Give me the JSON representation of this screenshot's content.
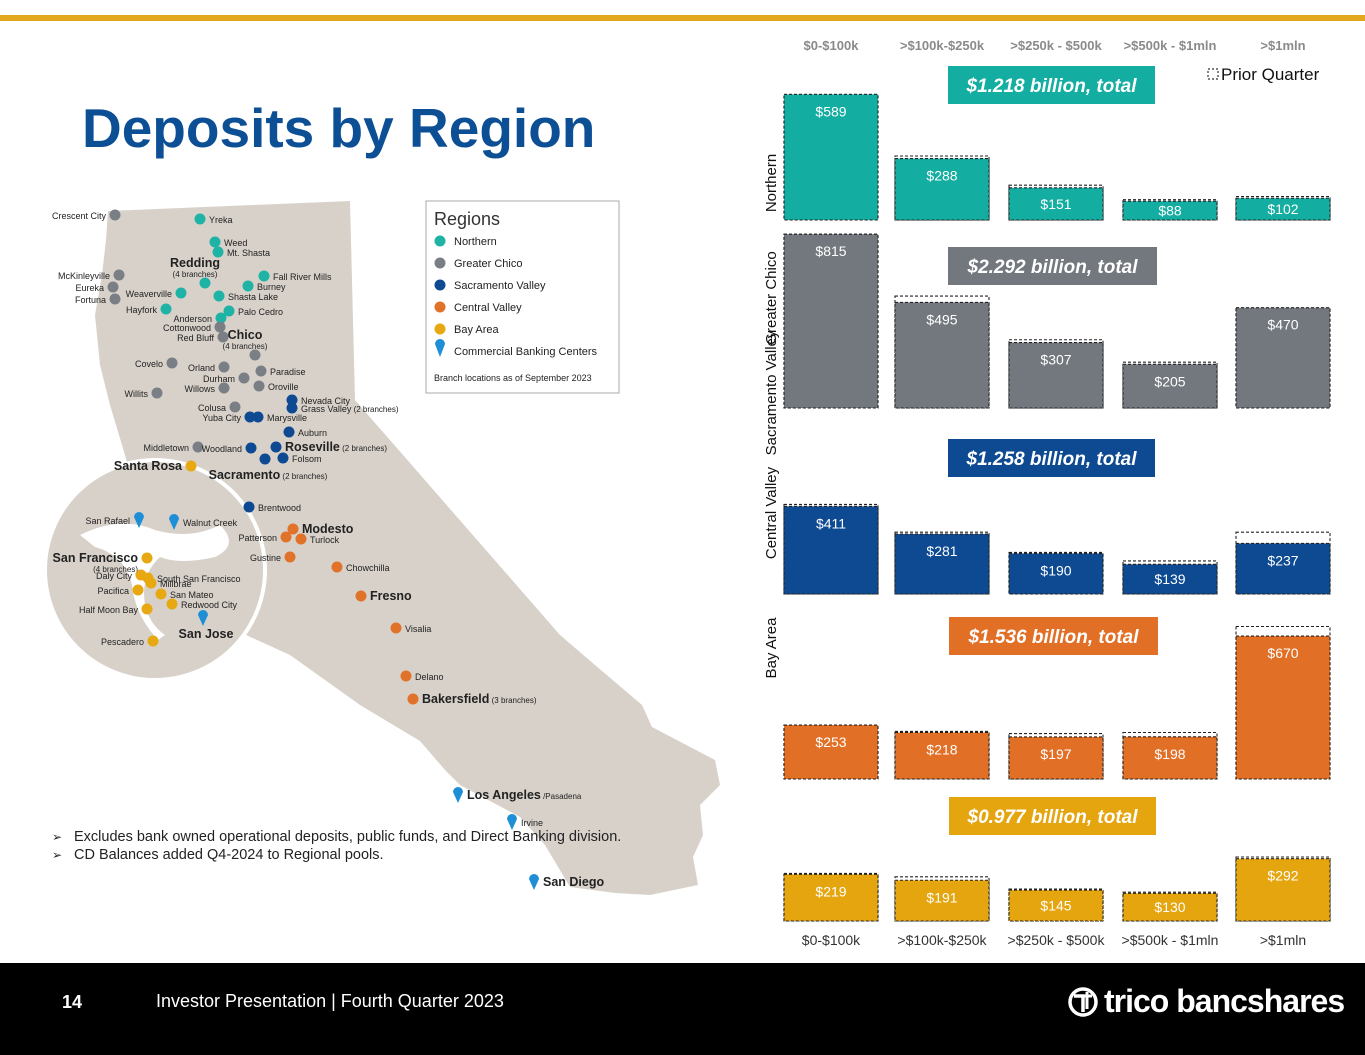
{
  "page": {
    "title": "Deposits by Region"
  },
  "map": {
    "regions_title": "Regions",
    "legend": [
      {
        "label": "Northern",
        "color": "#1fb3a6"
      },
      {
        "label": "Greater Chico",
        "color": "#7a7f86"
      },
      {
        "label": "Sacramento Valley",
        "color": "#0e4a92"
      },
      {
        "label": "Central Valley",
        "color": "#e0722a"
      },
      {
        "label": "Bay Area",
        "color": "#e8a812"
      },
      {
        "label": "Commercial Banking Centers",
        "color": "#1e8fd6"
      }
    ],
    "legend_note": "Branch locations as of September 2023",
    "cities": [
      {
        "name": "Crescent City",
        "region": "Greater Chico"
      },
      {
        "name": "Yreka",
        "region": "Northern"
      },
      {
        "name": "Weed",
        "region": "Northern"
      },
      {
        "name": "Mt. Shasta",
        "region": "Northern"
      },
      {
        "name": "Redding",
        "sub": "(4 branches)",
        "region": "Northern"
      },
      {
        "name": "Fall River Mills",
        "region": "Northern"
      },
      {
        "name": "Burney",
        "region": "Northern"
      },
      {
        "name": "McKinleyville",
        "region": "Greater Chico"
      },
      {
        "name": "Eureka",
        "region": "Greater Chico"
      },
      {
        "name": "Fortuna",
        "region": "Greater Chico"
      },
      {
        "name": "Weaverville",
        "region": "Northern"
      },
      {
        "name": "Shasta Lake",
        "region": "Northern"
      },
      {
        "name": "Hayfork",
        "region": "Northern"
      },
      {
        "name": "Palo Cedro",
        "region": "Northern"
      },
      {
        "name": "Anderson",
        "region": "Northern"
      },
      {
        "name": "Cottonwood",
        "region": "Greater Chico"
      },
      {
        "name": "Red Bluff",
        "region": "Greater Chico"
      },
      {
        "name": "Chico",
        "sub": "(4 branches)",
        "region": "Greater Chico"
      },
      {
        "name": "Covelo",
        "region": "Greater Chico"
      },
      {
        "name": "Orland",
        "region": "Greater Chico"
      },
      {
        "name": "Paradise",
        "region": "Greater Chico"
      },
      {
        "name": "Durham",
        "region": "Greater Chico"
      },
      {
        "name": "Willows",
        "region": "Greater Chico"
      },
      {
        "name": "Oroville",
        "region": "Greater Chico"
      },
      {
        "name": "Willits",
        "region": "Greater Chico"
      },
      {
        "name": "Nevada City",
        "region": "Sacramento Valley"
      },
      {
        "name": "Colusa",
        "region": "Greater Chico"
      },
      {
        "name": "Grass Valley",
        "sub": "(2 branches)",
        "region": "Sacramento Valley"
      },
      {
        "name": "Yuba City",
        "region": "Sacramento Valley"
      },
      {
        "name": "Marysville",
        "region": "Sacramento Valley"
      },
      {
        "name": "Auburn",
        "region": "Sacramento Valley"
      },
      {
        "name": "Middletown",
        "region": "Greater Chico"
      },
      {
        "name": "Woodland",
        "region": "Sacramento Valley"
      },
      {
        "name": "Roseville",
        "sub": "(2 branches)",
        "region": "Sacramento Valley"
      },
      {
        "name": "Folsom",
        "region": "Sacramento Valley"
      },
      {
        "name": "Santa Rosa",
        "region": "Bay Area"
      },
      {
        "name": "Sacramento",
        "sub": "(2 branches)",
        "region": "Sacramento Valley"
      },
      {
        "name": "Brentwood",
        "region": "Sacramento Valley"
      },
      {
        "name": "San Rafael",
        "region": "Commercial Banking Centers"
      },
      {
        "name": "Walnut Creek",
        "region": "Commercial Banking Centers"
      },
      {
        "name": "Patterson",
        "region": "Central Valley"
      },
      {
        "name": "Modesto",
        "region": "Central Valley"
      },
      {
        "name": "Turlock",
        "region": "Central Valley"
      },
      {
        "name": "Gustine",
        "region": "Central Valley"
      },
      {
        "name": "San Francisco",
        "sub": "(4 branches)",
        "region": "Bay Area"
      },
      {
        "name": "Daly City",
        "region": "Bay Area"
      },
      {
        "name": "South San Francisco",
        "region": "Bay Area"
      },
      {
        "name": "Millbrae",
        "region": "Bay Area"
      },
      {
        "name": "Pacifica",
        "region": "Bay Area"
      },
      {
        "name": "San Mateo",
        "region": "Bay Area"
      },
      {
        "name": "Half Moon Bay",
        "region": "Bay Area"
      },
      {
        "name": "Redwood City",
        "region": "Bay Area"
      },
      {
        "name": "San Jose",
        "region": "Commercial Banking Centers"
      },
      {
        "name": "Pescadero",
        "region": "Bay Area"
      },
      {
        "name": "Chowchilla",
        "region": "Central Valley"
      },
      {
        "name": "Fresno",
        "region": "Central Valley"
      },
      {
        "name": "Visalia",
        "region": "Central Valley"
      },
      {
        "name": "Delano",
        "region": "Central Valley"
      },
      {
        "name": "Bakersfield",
        "sub": "(3 branches)",
        "region": "Central Valley"
      },
      {
        "name": "Los Angeles",
        "sub": "/Pasadena",
        "region": "Commercial Banking Centers"
      },
      {
        "name": "Irvine",
        "region": "Commercial Banking Centers"
      },
      {
        "name": "San Diego",
        "region": "Commercial Banking Centers"
      }
    ]
  },
  "notes": [
    "Excludes bank owned operational deposits, public funds, and Direct Banking division.",
    "CD Balances added Q4-2024 to Regional pools."
  ],
  "chart_data": {
    "type": "bar",
    "units": "$ millions",
    "categories": [
      "$0-$100k",
      ">$100k-$250k",
      ">$250k - $500k",
      ">$500k - $1mln",
      ">$1mln"
    ],
    "prior_quarter_label": "Prior Quarter",
    "panels": [
      {
        "region": "Northern",
        "total_label": "$1.218 billion, total",
        "color": "#14ada1",
        "labels": [
          "$589",
          "$288",
          "$151",
          "$88",
          "$102"
        ],
        "values": [
          589,
          288,
          151,
          88,
          102
        ],
        "prior_quarter": [
          589,
          300,
          163,
          95,
          110
        ]
      },
      {
        "region": "Greater Chico",
        "total_label": "$2.292 billion, total",
        "color": "#72787e",
        "labels": [
          "$815",
          "$495",
          "$307",
          "$205",
          "$470"
        ],
        "values": [
          815,
          495,
          307,
          205,
          470
        ],
        "prior_quarter": [
          815,
          525,
          320,
          215,
          470
        ]
      },
      {
        "region": "Sacramento Valley",
        "total_label": "$1.258 billion, total",
        "color": "#0d4a92",
        "labels": [
          "$411",
          "$281",
          "$190",
          "$139",
          "$237"
        ],
        "values": [
          411,
          281,
          190,
          139,
          237
        ],
        "prior_quarter": [
          420,
          290,
          195,
          155,
          290
        ]
      },
      {
        "region": "Central Valley",
        "total_label": "$1.536 billion, total",
        "color": "#e26f26",
        "labels": [
          "$253",
          "$218",
          "$197",
          "$198",
          "$670"
        ],
        "values": [
          253,
          218,
          197,
          198,
          670
        ],
        "prior_quarter": [
          253,
          223,
          213,
          218,
          715
        ]
      },
      {
        "region": "Bay Area",
        "total_label": "$0.977 billion, total",
        "color": "#e5a50f",
        "labels": [
          "$219",
          "$191",
          "$145",
          "$130",
          "$292"
        ],
        "values": [
          219,
          191,
          145,
          130,
          292
        ],
        "prior_quarter": [
          223,
          207,
          150,
          135,
          300
        ]
      }
    ]
  },
  "footer": {
    "page_number": "14",
    "text": "Investor Presentation | Fourth Quarter 2023",
    "logo_text": "trico bancshares"
  }
}
